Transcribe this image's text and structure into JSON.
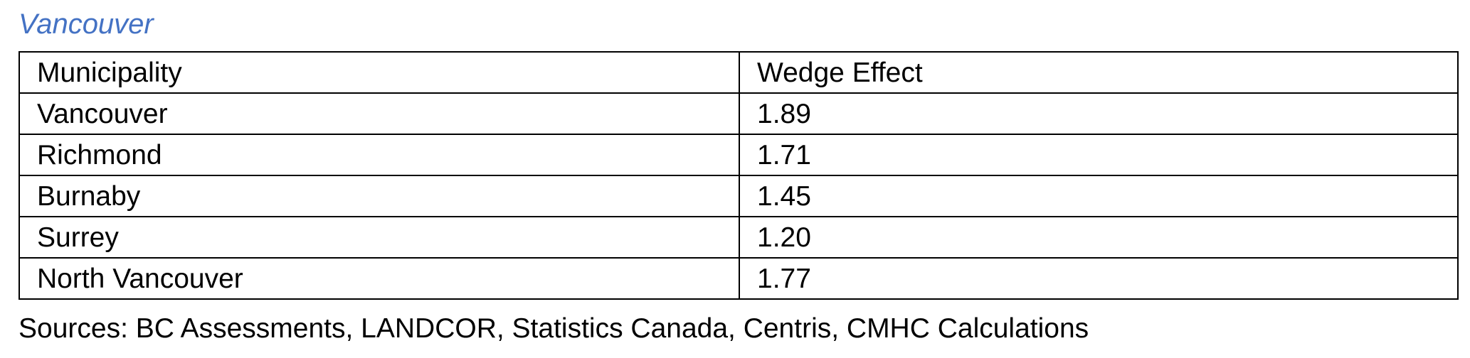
{
  "title": "Vancouver",
  "table": {
    "headers": [
      "Municipality",
      "Wedge Effect"
    ],
    "rows": [
      [
        "Vancouver",
        "1.89"
      ],
      [
        "Richmond",
        "1.71"
      ],
      [
        "Burnaby",
        "1.45"
      ],
      [
        "Surrey",
        "1.20"
      ],
      [
        "North Vancouver",
        "1.77"
      ]
    ]
  },
  "sources": "Sources: BC Assessments, LANDCOR, Statistics Canada, Centris, CMHC Calculations",
  "colors": {
    "title": "#4472c4",
    "text": "#000000",
    "border": "#000000"
  }
}
